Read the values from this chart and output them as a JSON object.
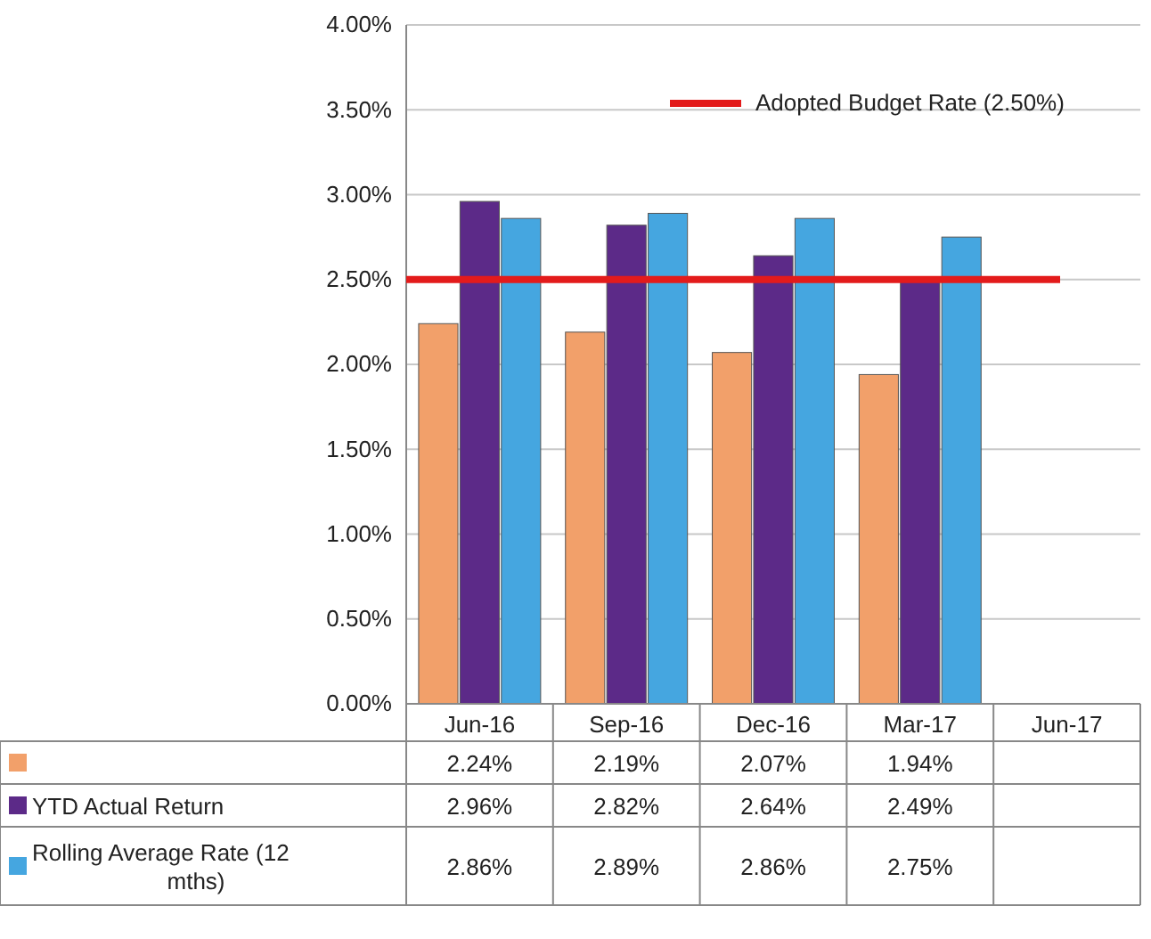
{
  "chart_data": {
    "type": "bar",
    "categories": [
      "Jun-16",
      "Sep-16",
      "Dec-16",
      "Mar-17",
      "Jun-17"
    ],
    "series": [
      {
        "color": "#f2a06a",
        "values": [
          2.24,
          2.19,
          2.07,
          1.94,
          null
        ],
        "value_labels": [
          "2.24%",
          "2.19%",
          "2.07%",
          "1.94%",
          null
        ]
      },
      {
        "name": "YTD Actual Return",
        "color": "#5c2a88",
        "values": [
          2.96,
          2.82,
          2.64,
          2.49,
          null
        ],
        "value_labels": [
          "2.96%",
          "2.82%",
          "2.64%",
          "2.49%",
          null
        ]
      },
      {
        "name": "Rolling Average Rate (12 mths)",
        "color": "#45a6e0",
        "values": [
          2.86,
          2.89,
          2.86,
          2.75,
          null
        ],
        "value_labels": [
          "2.86%",
          "2.89%",
          "2.86%",
          "2.75%",
          null
        ]
      }
    ],
    "ylim": [
      0,
      4
    ],
    "yticks": [
      {
        "value": 0,
        "label": "0.00%"
      },
      {
        "value": 0.5,
        "label": "0.50%"
      },
      {
        "value": 1,
        "label": "1.00%"
      },
      {
        "value": 1.5,
        "label": "1.50%"
      },
      {
        "value": 2,
        "label": "2.00%"
      },
      {
        "value": 2.5,
        "label": "2.50%"
      },
      {
        "value": 3,
        "label": "3.00%"
      },
      {
        "value": 3.5,
        "label": "3.50%"
      },
      {
        "value": 4,
        "label": "4.00%"
      }
    ],
    "grid": "y",
    "legend": "bottom",
    "ref_lines": [
      {
        "axis": "y",
        "value": 2.5,
        "label": "Adopted Budget Rate (2.50%)",
        "color": "#e31b1b"
      }
    ]
  }
}
